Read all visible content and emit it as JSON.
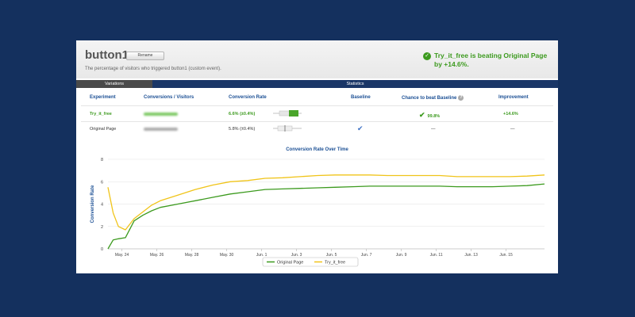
{
  "header": {
    "title": "button1",
    "rename_label": "Rename",
    "subtitle": "The percentage of visitors who triggered button1 (custom event).",
    "winner_text": "Try_it_free is beating Original Page by +14.6%."
  },
  "tabs": [
    {
      "label": "Variations"
    },
    {
      "label": "Statistics"
    }
  ],
  "table": {
    "columns": [
      "Experiment",
      "Conversions / Visitors",
      "Conversion Rate",
      "Baseline",
      "Chance to beat Baseline",
      "Improvement"
    ],
    "rows": [
      {
        "experiment": "Try_it_free",
        "conversion_rate": "6.6% (±0.4%)",
        "baseline": "",
        "chance": "99.8%",
        "improvement": "+14.6%"
      },
      {
        "experiment": "Original Page",
        "conversion_rate": "5.8% (±0.4%)",
        "baseline": "✔",
        "chance": "—",
        "improvement": "—"
      }
    ]
  },
  "colors": {
    "green": "#3c9a1e",
    "yellow": "#f0c419",
    "navy": "#14305e",
    "link_blue": "#1b4f94"
  },
  "chart_data": {
    "type": "line",
    "title": "Conversion Rate Over Time",
    "xlabel": "",
    "ylabel": "Conversion Rate",
    "ylim": [
      0,
      8
    ],
    "yticks": [
      0,
      2,
      4,
      6,
      8
    ],
    "x_tick_labels": [
      "May. 24",
      "May. 26",
      "May. 28",
      "May. 30",
      "Jun. 1",
      "Jun. 3",
      "Jun. 5",
      "Jun. 7",
      "Jun. 9",
      "Jun. 11",
      "Jun. 13",
      "Jun. 15"
    ],
    "x": [
      0,
      0.3,
      0.6,
      1.0,
      1.5,
      2.0,
      2.5,
      3,
      4,
      5,
      6,
      7,
      8,
      9,
      10,
      11,
      12,
      13,
      14,
      15,
      16,
      17,
      18,
      19,
      20,
      21,
      22,
      23,
      24,
      25
    ],
    "series": [
      {
        "name": "Original Page",
        "color": "#3c9a1e",
        "values": [
          0.0,
          0.8,
          0.9,
          1.0,
          2.5,
          3.0,
          3.4,
          3.7,
          4.0,
          4.3,
          4.6,
          4.9,
          5.1,
          5.3,
          5.35,
          5.4,
          5.45,
          5.5,
          5.55,
          5.6,
          5.6,
          5.6,
          5.6,
          5.6,
          5.55,
          5.55,
          5.55,
          5.6,
          5.65,
          5.8
        ]
      },
      {
        "name": "Try_it_free",
        "color": "#f0c419",
        "values": [
          5.5,
          3.2,
          2.0,
          1.7,
          2.7,
          3.3,
          3.9,
          4.3,
          4.8,
          5.3,
          5.7,
          6.0,
          6.1,
          6.3,
          6.35,
          6.45,
          6.55,
          6.6,
          6.6,
          6.6,
          6.55,
          6.55,
          6.55,
          6.55,
          6.45,
          6.45,
          6.45,
          6.45,
          6.5,
          6.6
        ]
      }
    ],
    "legend_position": "bottom-center"
  }
}
